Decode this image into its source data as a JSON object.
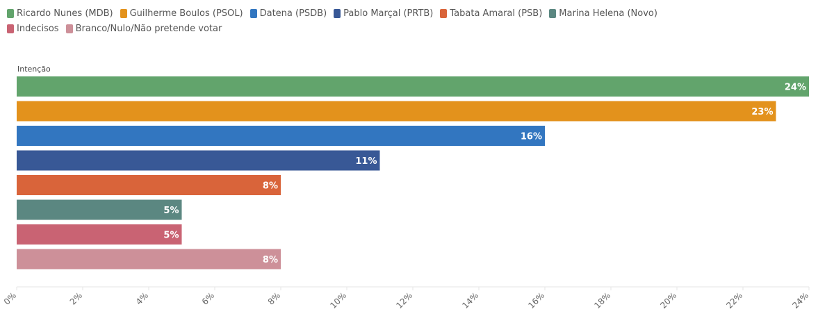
{
  "chart_data": {
    "type": "bar",
    "orientation": "horizontal",
    "title": "",
    "ylabel": "Intenção",
    "xlim": [
      0,
      24
    ],
    "x_ticks": [
      "0%",
      "2%",
      "4%",
      "6%",
      "8%",
      "10%",
      "12%",
      "14%",
      "16%",
      "18%",
      "20%",
      "22%",
      "24%"
    ],
    "legend_position": "top-left",
    "grid": false,
    "series": [
      {
        "name": "Ricardo Nunes (MDB)",
        "value": 24,
        "label": "24%",
        "color": "#62a46c"
      },
      {
        "name": "Guilherme Boulos (PSOL)",
        "value": 23,
        "label": "23%",
        "color": "#e3921c"
      },
      {
        "name": "Datena (PSDB)",
        "value": 16,
        "label": "16%",
        "color": "#3276c0"
      },
      {
        "name": "Pablo Marçal (PRTB)",
        "value": 11,
        "label": "11%",
        "color": "#385896"
      },
      {
        "name": "Tabata Amaral (PSB)",
        "value": 8,
        "label": "8%",
        "color": "#d9643a"
      },
      {
        "name": "Marina Helena (Novo)",
        "value": 5,
        "label": "5%",
        "color": "#5b8781"
      },
      {
        "name": "Indecisos",
        "value": 5,
        "label": "5%",
        "color": "#c96373"
      },
      {
        "name": "Branco/Nulo/Não pretende votar",
        "value": 8,
        "label": "8%",
        "color": "#cd9099"
      }
    ]
  }
}
